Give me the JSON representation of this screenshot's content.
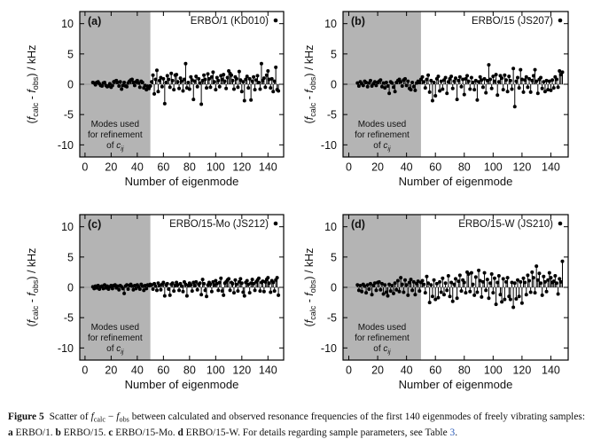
{
  "colors": {
    "shade": "#b4b4b4",
    "zero_line": "#999999",
    "point": "#000000",
    "border": "#000000",
    "link": "#2b5bb8"
  },
  "caption": {
    "segments": [
      {
        "t": "Figure 5",
        "b": 1
      },
      {
        "t": "  Scatter of "
      },
      {
        "t": "f",
        "i": 1
      },
      {
        "t": "calc",
        "sub": 1
      },
      {
        "t": " − "
      },
      {
        "t": "f",
        "i": 1
      },
      {
        "t": "obs",
        "sub": 1
      },
      {
        "t": " between calculated and observed resonance frequencies of the first 140 eigenmodes of freely vibrating samples: "
      },
      {
        "t": "a",
        "b": 1
      },
      {
        "t": " ERBO/1. "
      },
      {
        "t": "b",
        "b": 1
      },
      {
        "t": " ERBO/15. "
      },
      {
        "t": "c",
        "b": 1
      },
      {
        "t": " ERBO/15-Mo. "
      },
      {
        "t": "d",
        "b": 1
      },
      {
        "t": " ERBO/15-W. For details regarding sample parameters, see Table "
      },
      {
        "t": "3",
        "link": 1
      },
      {
        "t": "."
      }
    ]
  },
  "chart_data": {
    "type": "scatter",
    "subtype": "stem",
    "xlabel": "Number of eigenmode",
    "ylabel": "(f_calc - f_obs) / kHz",
    "ylabel_segments": [
      {
        "t": "("
      },
      {
        "t": "f",
        "i": 1
      },
      {
        "t": "calc",
        "sub": 1
      },
      {
        "t": " - "
      },
      {
        "t": "f",
        "i": 1
      },
      {
        "t": "obs",
        "sub": 1
      },
      {
        "t": ") / kHz"
      }
    ],
    "x_ticks": [
      0,
      20,
      40,
      60,
      80,
      100,
      120,
      140
    ],
    "y_ticks": [
      -10,
      -5,
      0,
      5,
      10
    ],
    "xlim": [
      -4,
      152
    ],
    "ylim": [
      -12,
      12
    ],
    "grid": false,
    "shade_region": {
      "x_from": -4,
      "x_to": 50
    },
    "region_note": {
      "lines": [
        "Modes used",
        "for refinement"
      ],
      "last_line": [
        {
          "t": "of "
        },
        {
          "t": "c",
          "i": 1
        },
        {
          "t": "ij",
          "sub": 1,
          "i": 1
        }
      ]
    },
    "legend_position": "top-right-inside",
    "panels": [
      {
        "id": "a",
        "label": "(a)",
        "legend": "ERBO/1 (KD010)",
        "x_start": 6,
        "values": [
          0.3,
          0.2,
          -0.1,
          0.3,
          0.4,
          0.1,
          -0.2,
          -0.3,
          0.2,
          0.3,
          -0.2,
          -0.4,
          -0.3,
          0.1,
          -0.5,
          -0.2,
          0.4,
          0.5,
          0.6,
          0.3,
          -0.3,
          0.4,
          -0.8,
          -0.2,
          0.3,
          -0.3,
          -0.4,
          0.2,
          0.5,
          0.7,
          0.8,
          0.3,
          -0.2,
          0.4,
          0.6,
          0.2,
          -0.5,
          0.5,
          0.3,
          -0.6,
          -0.2,
          -0.9,
          -0.4,
          -0.7,
          -0.3,
          0.4,
          1.5,
          -1.6,
          0.8,
          2.3,
          -1.2,
          0.6,
          1.1,
          -0.4,
          0.9,
          -3.2,
          0.3,
          1.4,
          0.8,
          -0.5,
          1.8,
          0.6,
          -0.9,
          1.5,
          1.6,
          0.4,
          -0.7,
          1.0,
          0.5,
          -1.1,
          0.8,
          3.4,
          -0.6,
          0.3,
          -0.8,
          1.2,
          0.7,
          -2.5,
          0.5,
          1.3,
          -0.4,
          0.9,
          0.2,
          -3.3,
          0.6,
          1.5,
          0.8,
          -0.6,
          1.7,
          0.9,
          -0.5,
          1.2,
          2.0,
          0.4,
          -0.9,
          1.1,
          0.6,
          -0.4,
          1.4,
          0.8,
          1.6,
          0.5,
          -0.7,
          1.1,
          2.2,
          1.8,
          1.5,
          0.6,
          -0.8,
          1.2,
          0.9,
          -0.5,
          2.1,
          0.7,
          -1.2,
          0.4,
          -2.7,
          0.8,
          1.3,
          -0.6,
          0.9,
          -2.6,
          0.5,
          1.2,
          -0.9,
          0.7,
          1.4,
          0.3,
          -0.8,
          3.4,
          0.6,
          1.0,
          -0.5,
          1.5,
          2.2,
          0.8,
          -0.6,
          0.9,
          -1.2,
          0.5,
          2.8,
          -0.9,
          -1.1
        ]
      },
      {
        "id": "b",
        "label": "(b)",
        "legend": "ERBO/15 (JS207)",
        "x_start": 6,
        "values": [
          0.2,
          -0.3,
          0.4,
          0.1,
          -0.2,
          0.5,
          0.3,
          -0.4,
          0.2,
          0.6,
          -0.3,
          0.1,
          0.4,
          -0.2,
          0.3,
          0.5,
          0.7,
          -0.4,
          0.2,
          -0.6,
          0.3,
          -0.3,
          -1.5,
          0.4,
          0.2,
          -0.5,
          -1.2,
          0.3,
          0.6,
          0.8,
          0.4,
          -0.3,
          0.7,
          0.9,
          -0.2,
          0.5,
          -0.7,
          -0.9,
          0.3,
          -0.4,
          -1.0,
          0.2,
          0.5,
          0.3,
          0.8,
          1.2,
          0.4,
          -0.6,
          0.8,
          1.5,
          -1.3,
          0.6,
          -2.7,
          0.3,
          -1.9,
          0.9,
          1.3,
          -1.1,
          0.5,
          -0.8,
          0.7,
          1.1,
          -1.5,
          0.4,
          0.9,
          1.3,
          -0.7,
          0.5,
          1.0,
          -2.5,
          0.6,
          1.2,
          -0.4,
          0.8,
          -1.7,
          0.9,
          1.4,
          0.5,
          -0.8,
          1.1,
          0.3,
          -0.9,
          0.6,
          -2.6,
          0.4,
          1.2,
          0.7,
          -0.5,
          0.9,
          -1.4,
          0.6,
          3.2,
          0.8,
          -0.7,
          1.3,
          0.5,
          1.6,
          -1.8,
          0.4,
          1.4,
          1.0,
          -0.9,
          1.5,
          0.7,
          -1.2,
          1.3,
          0.6,
          -0.8,
          2.6,
          -3.7,
          0.5,
          1.1,
          -0.6,
          2.4,
          0.8,
          -1.3,
          0.7,
          1.2,
          -0.5,
          0.9,
          -1.3,
          0.6,
          1.4,
          2.4,
          0.5,
          -1.5,
          0.8,
          1.1,
          -0.7,
          0.4,
          -1.2,
          0.6,
          -0.9,
          0.5,
          -1.0,
          0.7,
          -0.6,
          1.2,
          0.8,
          -0.5,
          2.2,
          1.6,
          2.0
        ]
      },
      {
        "id": "c",
        "label": "(c)",
        "legend": "ERBO/15-Mo (JS212)",
        "x_start": 6,
        "values": [
          0.1,
          -0.2,
          0.2,
          -0.1,
          0.3,
          -0.3,
          0.1,
          0.2,
          -0.2,
          0.4,
          -0.1,
          0.2,
          -0.3,
          0.1,
          0.3,
          -0.2,
          0.3,
          0.4,
          -0.1,
          0.2,
          -0.4,
          0.3,
          0.1,
          -0.2,
          -1.0,
          0.2,
          0.4,
          -0.3,
          0.3,
          0.5,
          0.2,
          -0.4,
          0.3,
          -0.2,
          0.4,
          0.1,
          -0.3,
          0.5,
          0.2,
          -0.5,
          0.3,
          -0.2,
          0.4,
          0.3,
          0.5,
          0.4,
          -0.3,
          0.6,
          0.2,
          -0.5,
          0.7,
          0.3,
          -0.4,
          0.5,
          0.8,
          -1.4,
          0.4,
          0.6,
          -0.3,
          -1.3,
          0.5,
          0.7,
          -0.6,
          0.3,
          0.8,
          0.4,
          -0.5,
          0.6,
          0.2,
          -0.7,
          0.9,
          0.5,
          -1.4,
          0.3,
          0.7,
          0.4,
          -0.6,
          0.8,
          0.3,
          0.9,
          -0.4,
          0.5,
          0.7,
          -1.2,
          1.3,
          0.6,
          -0.5,
          -1.5,
          0.4,
          0.8,
          0.5,
          -0.7,
          0.9,
          0.4,
          1.1,
          0.6,
          -0.5,
          0.8,
          1.5,
          -0.6,
          -1.3,
          0.7,
          0.9,
          1.2,
          1.4,
          -0.5,
          0.8,
          0.6,
          -0.9,
          1.2,
          0.5,
          -0.6,
          0.9,
          1.4,
          0.7,
          -0.8,
          -1.4,
          0.8,
          1.1,
          0.5,
          -0.9,
          0.7,
          1.3,
          0.6,
          -0.5,
          0.9,
          1.2,
          1.5,
          -0.6,
          0.8,
          1.0,
          -0.7,
          0.9,
          1.3,
          1.6,
          0.7,
          -0.8,
          1.1,
          0.8,
          -0.6,
          1.2,
          1.6,
          -1.3
        ]
      },
      {
        "id": "d",
        "label": "(d)",
        "legend": "ERBO/15-W (JS210)",
        "x_start": 6,
        "values": [
          0.4,
          -0.5,
          0.3,
          -0.7,
          0.5,
          0.2,
          -0.9,
          0.4,
          -0.3,
          0.6,
          -1.2,
          0.3,
          0.7,
          -0.5,
          0.8,
          0.9,
          -0.4,
          0.6,
          -1.1,
          0.4,
          -0.8,
          -1.4,
          0.5,
          -0.6,
          0.3,
          -1.0,
          0.7,
          -0.4,
          1.1,
          -0.7,
          1.6,
          0.5,
          -0.8,
          1.2,
          0.4,
          -1.3,
          0.8,
          1.3,
          -0.5,
          0.9,
          -1.2,
          0.6,
          1.0,
          -0.6,
          0.8,
          1.1,
          0.5,
          -0.9,
          1.8,
          0.7,
          -2.5,
          0.4,
          -1.5,
          1.2,
          -2.0,
          0.6,
          -1.7,
          0.9,
          -0.8,
          1.5,
          -1.2,
          0.7,
          -0.5,
          1.9,
          -1.5,
          0.8,
          -2.3,
          0.5,
          1.4,
          -1.8,
          1.0,
          2.0,
          -0.6,
          1.2,
          0.8,
          -0.9,
          2.5,
          2.2,
          -0.7,
          2.4,
          0.5,
          -1.3,
          1.7,
          -0.8,
          2.8,
          1.1,
          -1.6,
          0.9,
          2.4,
          -0.5,
          1.3,
          -1.8,
          0.7,
          2.2,
          -0.9,
          1.5,
          -2.8,
          0.8,
          1.9,
          -1.2,
          -2.4,
          1.4,
          -2.0,
          0.9,
          1.6,
          -1.5,
          -2.0,
          0.8,
          -3.3,
          0.7,
          -1.9,
          1.2,
          -1.5,
          0.9,
          -2.6,
          1.5,
          0.8,
          -1.2,
          2.0,
          1.1,
          -0.8,
          2.5,
          1.6,
          -0.9,
          3.5,
          1.2,
          2.3,
          0.7,
          -1.3,
          1.8,
          0.9,
          -0.7,
          1.2,
          2.4,
          1.6,
          0.8,
          1.0,
          1.9,
          0.7,
          -1.1,
          1.4,
          0.9,
          4.3
        ]
      }
    ]
  }
}
